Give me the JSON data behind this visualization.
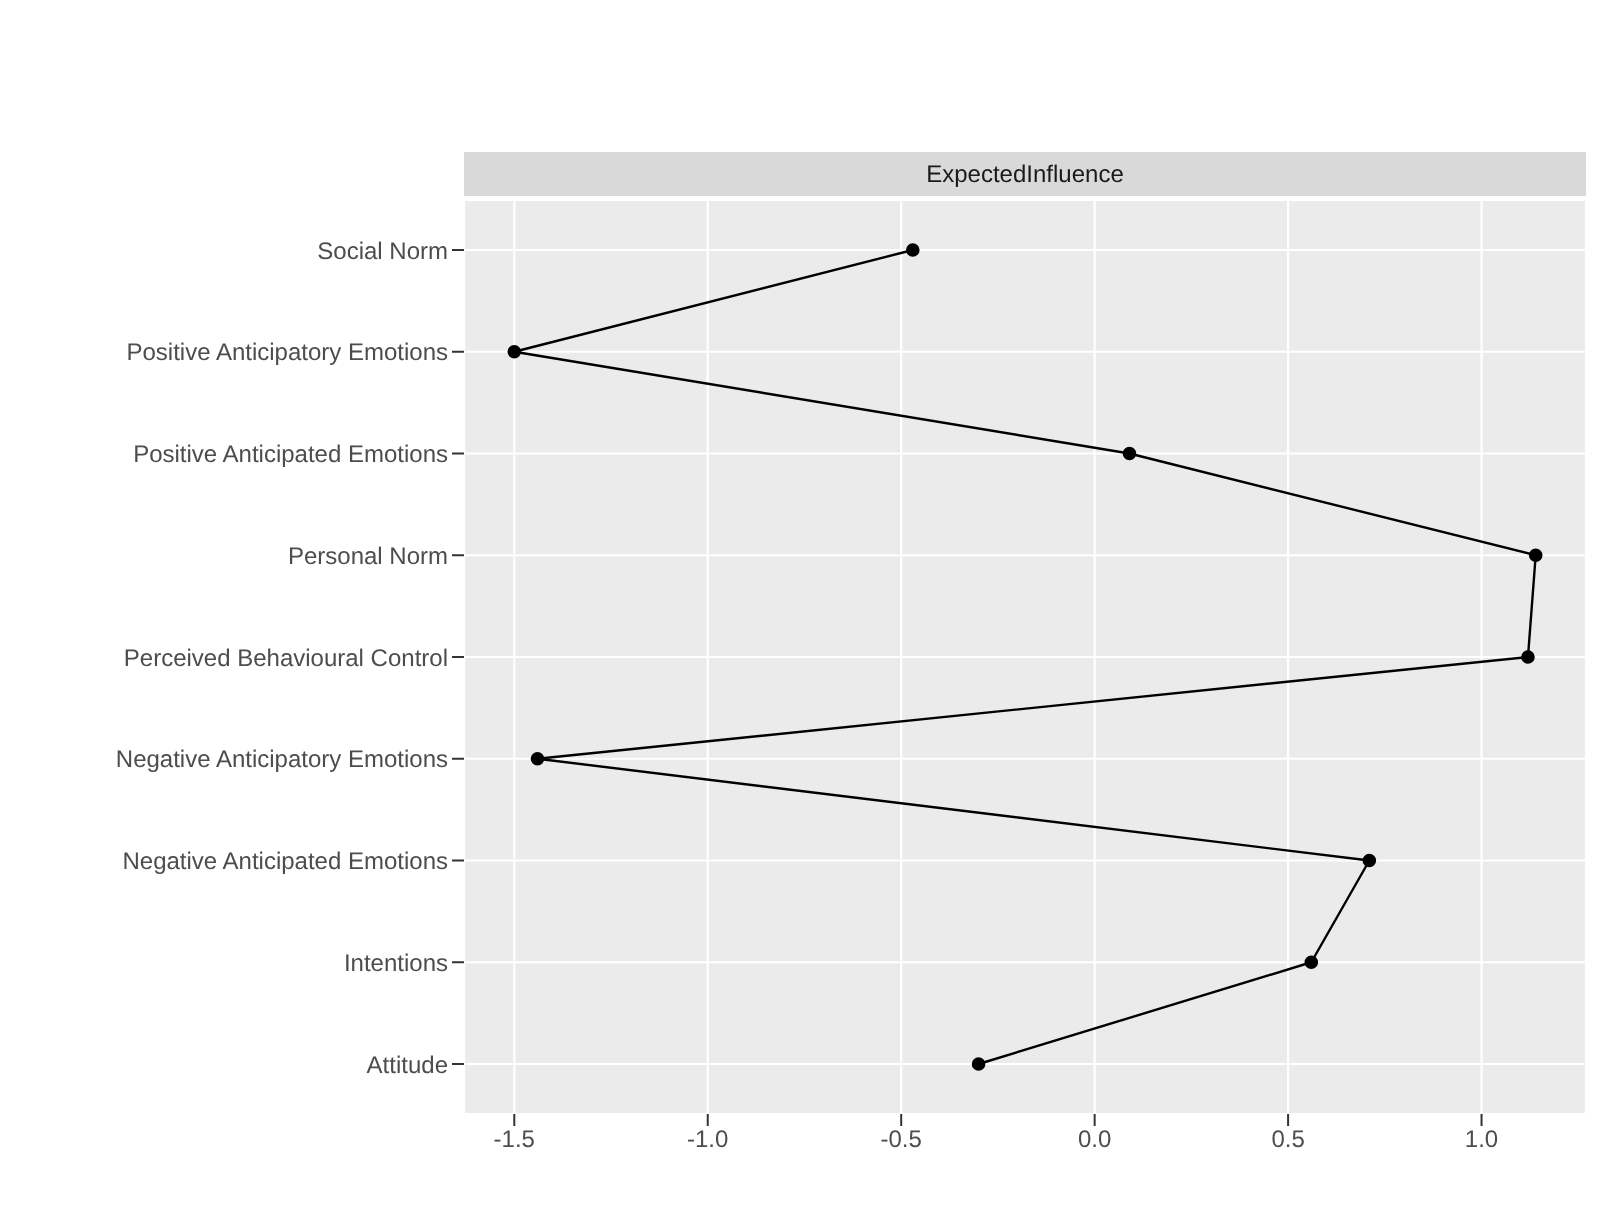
{
  "chart_data": {
    "type": "line",
    "title": "ExpectedInfluence",
    "orientation": "horizontal",
    "categories": [
      "Social Norm",
      "Positive Anticipatory Emotions",
      "Positive Anticipated Emotions",
      "Personal Norm",
      "Perceived Behavioural Control",
      "Negative Anticipatory Emotions",
      "Negative Anticipated Emotions",
      "Intentions",
      "Attitude"
    ],
    "series": [
      {
        "color": "#000000",
        "values": [
          -0.47,
          -1.5,
          0.09,
          1.14,
          1.12,
          -1.44,
          0.71,
          0.56,
          -0.3
        ]
      }
    ],
    "xlim": [
      -1.63,
      1.27
    ],
    "xticks": [
      -1.5,
      {
        "value": -1,
        "label": "-1.0"
      },
      -0.5,
      {
        "value": 0,
        "label": "0.0"
      },
      0.5,
      {
        "value": 1,
        "label": "1.0"
      }
    ],
    "grid": true,
    "marker": "circle",
    "line_style": "solid"
  }
}
